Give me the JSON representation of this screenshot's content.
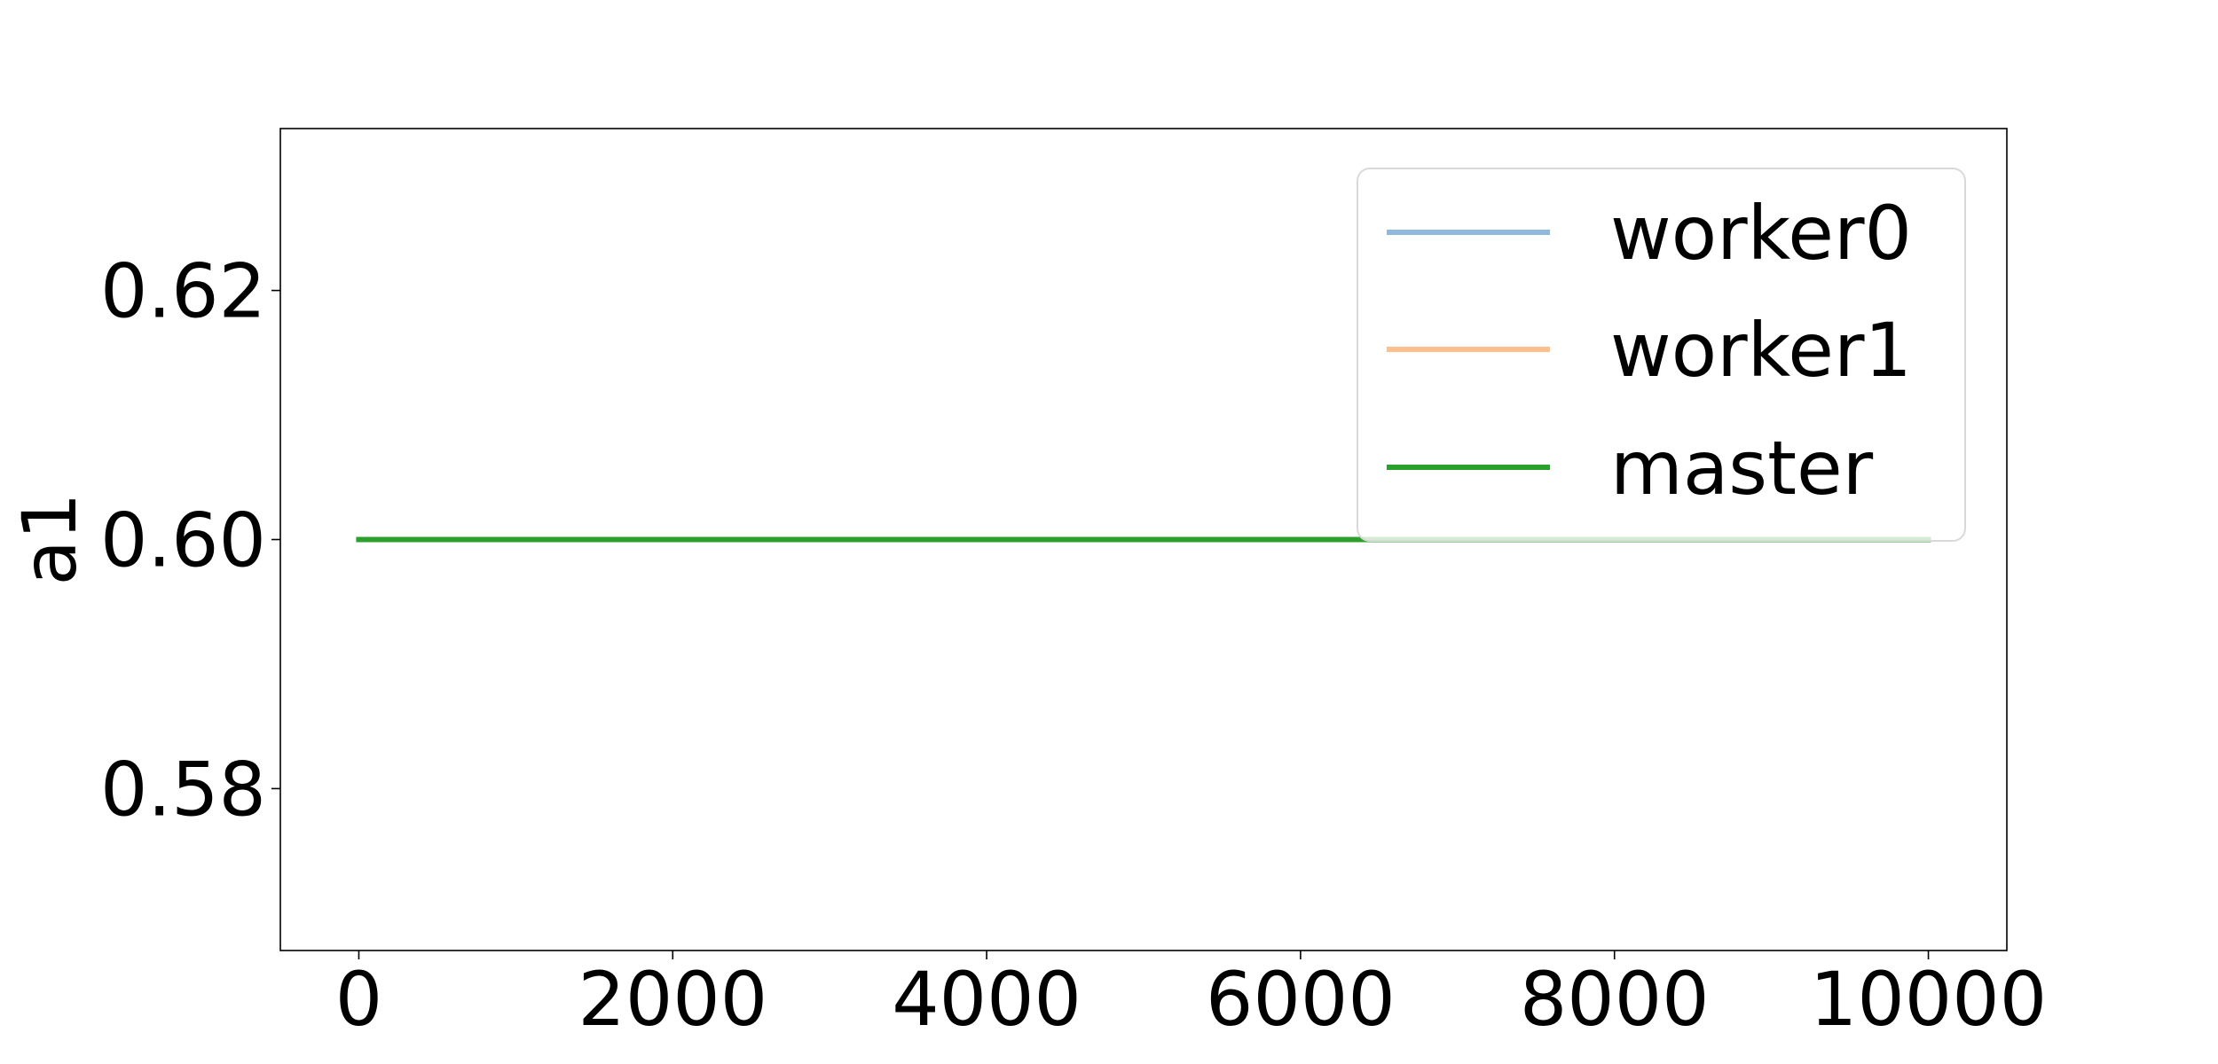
{
  "chart_data": {
    "type": "line",
    "title": "",
    "xlabel": "",
    "ylabel": "a1",
    "xlim": [
      -500,
      10500
    ],
    "ylim": [
      0.567,
      0.633
    ],
    "x_ticks": [
      0,
      2000,
      4000,
      6000,
      8000,
      10000
    ],
    "x_tick_labels": [
      "0",
      "2000",
      "4000",
      "6000",
      "8000",
      "10000"
    ],
    "y_ticks": [
      0.58,
      0.6,
      0.62
    ],
    "y_tick_labels": [
      "0.58",
      "0.60",
      "0.62"
    ],
    "grid": false,
    "legend_position": "top-right",
    "series": [
      {
        "name": "worker0",
        "color": "#8fb8dc",
        "x": [
          0,
          10000
        ],
        "values": [
          0.6,
          0.6
        ]
      },
      {
        "name": "worker1",
        "color": "#ffbf8a",
        "x": [
          0,
          10000
        ],
        "values": [
          0.6,
          0.6
        ]
      },
      {
        "name": "master",
        "color": "#2ca02c",
        "x": [
          0,
          10000
        ],
        "values": [
          0.6,
          0.6
        ]
      }
    ]
  }
}
